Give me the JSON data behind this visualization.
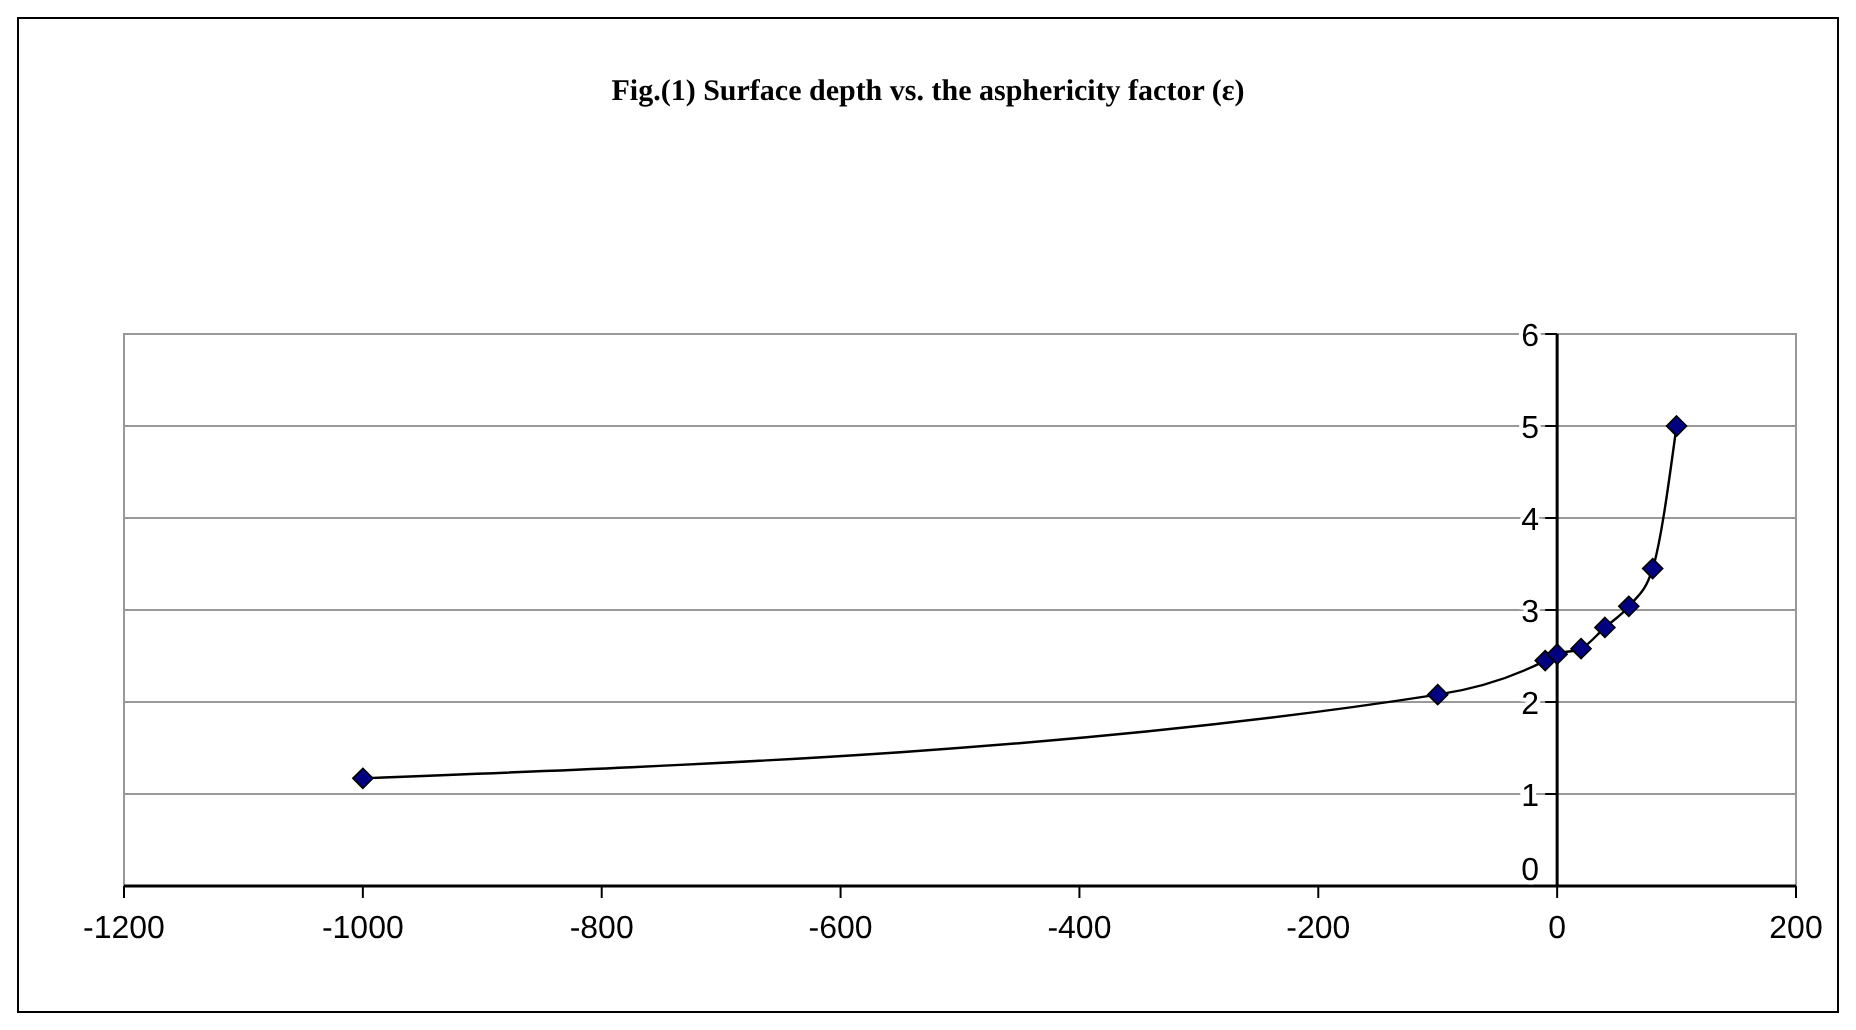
{
  "chart_data": {
    "type": "line",
    "title": "Fig.(1) Surface depth vs. the asphericity factor (ε)",
    "x": [
      -1000,
      -100,
      -10,
      0,
      20,
      40,
      60,
      80,
      100
    ],
    "series": [
      {
        "color": "#000080",
        "values": [
          1.17,
          2.08,
          2.45,
          2.52,
          2.58,
          2.81,
          3.04,
          3.45,
          5
        ]
      }
    ],
    "xlim": [
      -1200,
      200
    ],
    "xticks": [
      -1200,
      -1000,
      -800,
      -600,
      -400,
      -200,
      0,
      200
    ],
    "ylim": [
      0,
      6
    ],
    "yticks": [
      0,
      1,
      2,
      3,
      4,
      5,
      6
    ],
    "grid": "y",
    "marker": "diamond",
    "line_style": "solid"
  }
}
